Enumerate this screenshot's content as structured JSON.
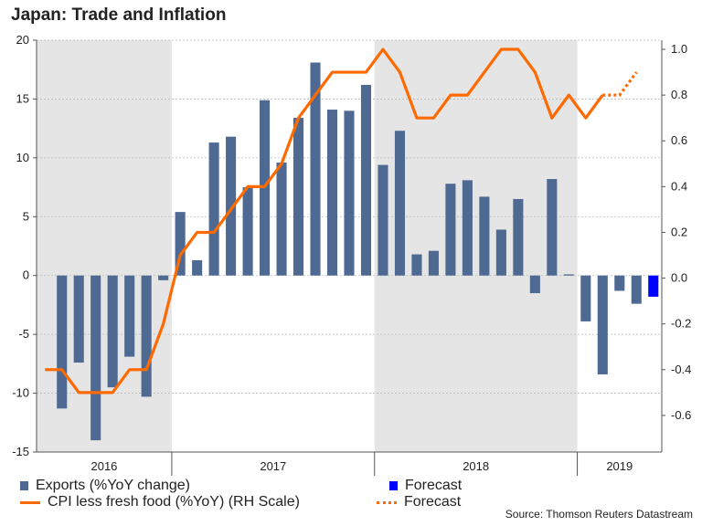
{
  "title": "Japan: Trade and Inflation",
  "source": "Source: Thomson Reuters Datastream",
  "legend": {
    "exports": "Exports (%YoY change)",
    "exports_forecast": "Forecast",
    "cpi": "CPI less fresh food (%YoY) (RH Scale)",
    "cpi_forecast": "Forecast"
  },
  "colors": {
    "bar": "#4f6a92",
    "bar_forecast": "#0000ff",
    "line": "#ff6a00",
    "shade": "#e5e5e5"
  },
  "chart_data": {
    "type": "bar+line",
    "title": "Japan: Trade and Inflation",
    "x_period_labels": [
      "2016",
      "2017",
      "2018",
      "2019"
    ],
    "months": [
      "2016-01",
      "2016-02",
      "2016-03",
      "2016-04",
      "2016-05",
      "2016-06",
      "2016-07",
      "2016-08",
      "2016-09",
      "2016-10",
      "2016-11",
      "2016-12",
      "2017-01",
      "2017-02",
      "2017-03",
      "2017-04",
      "2017-05",
      "2017-06",
      "2017-07",
      "2017-08",
      "2017-09",
      "2017-10",
      "2017-11",
      "2017-12",
      "2018-01",
      "2018-02",
      "2018-03",
      "2018-04",
      "2018-05",
      "2018-06",
      "2018-07",
      "2018-08",
      "2018-09",
      "2018-10",
      "2018-11",
      "2018-12",
      "2019-01",
      "2019-02",
      "2019-03",
      "2019-04"
    ],
    "left_axis": {
      "label": "Exports (%YoY change)",
      "ylim": [
        -15,
        20
      ],
      "ticks": [
        20,
        15,
        10,
        5,
        0,
        -5,
        -10,
        -15
      ]
    },
    "right_axis": {
      "label": "CPI less fresh food (%YoY)",
      "ylim": [
        -0.76,
        1.04
      ],
      "ticks": [
        "1.0",
        "0.8",
        "0.6",
        "0.4",
        "0.2",
        "0.0",
        "-0.2",
        "-0.4",
        "-0.6"
      ]
    },
    "shaded_years": [
      "2016",
      "2018"
    ],
    "series": [
      {
        "name": "Exports (%YoY change)",
        "type": "bar",
        "axis": "left",
        "values": [
          -11.3,
          -7.4,
          -14.0,
          -9.5,
          -6.9,
          -10.3,
          -0.4,
          5.4,
          1.3,
          11.3,
          11.8,
          7.5,
          14.9,
          9.6,
          13.4,
          18.1,
          14.1,
          14.0,
          16.2,
          9.4,
          12.3,
          1.8,
          2.1,
          7.8,
          8.1,
          6.7,
          3.9,
          6.5,
          -1.5,
          8.2,
          0.1,
          -3.9,
          -8.4,
          -1.3,
          -2.4,
          null
        ],
        "forecast": {
          "index": 35,
          "value": -1.8
        }
      },
      {
        "name": "CPI less fresh food (%YoY)",
        "type": "line",
        "axis": "right",
        "values": [
          -0.4,
          -0.4,
          -0.5,
          -0.5,
          -0.5,
          -0.4,
          -0.4,
          -0.2,
          0.1,
          0.2,
          0.2,
          0.3,
          0.4,
          0.4,
          0.5,
          0.7,
          0.8,
          0.9,
          0.9,
          0.9,
          1.0,
          0.9,
          0.7,
          0.7,
          0.8,
          0.8,
          0.9,
          1.0,
          1.0,
          0.9,
          0.7,
          0.8,
          0.7,
          0.8
        ],
        "forecast": {
          "start_index": 33,
          "values": [
            0.8,
            0.9
          ]
        }
      }
    ]
  }
}
